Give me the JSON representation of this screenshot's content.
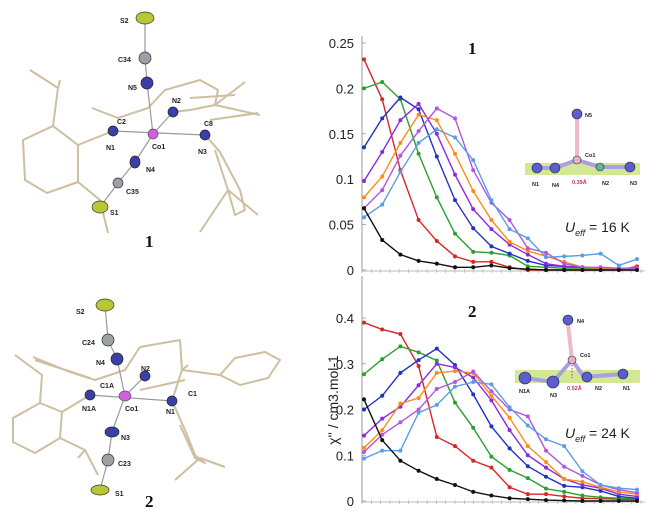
{
  "molecules": [
    {
      "id": "1",
      "atoms": [
        "S2",
        "C34",
        "N5",
        "N2",
        "C2",
        "N1",
        "Co1",
        "C8",
        "N3",
        "N4",
        "C35",
        "S1"
      ]
    },
    {
      "id": "2",
      "atoms": [
        "S2",
        "C24",
        "N4",
        "C1A",
        "N2",
        "N1A",
        "Co1",
        "N1",
        "C1",
        "N3",
        "C23",
        "S1"
      ]
    }
  ],
  "insets": [
    {
      "atoms": [
        "N5",
        "Co1",
        "N1",
        "N4",
        "N2",
        "N3"
      ],
      "distance": "0.39Å"
    },
    {
      "atoms": [
        "N4",
        "Co1",
        "N1A",
        "N3",
        "N2",
        "N1"
      ],
      "distance": "0.52Å"
    }
  ],
  "colors": {
    "red": "#d62728",
    "green": "#2ca02c",
    "darkblue": "#2233bb",
    "purple": "#8a2be2",
    "orange": "#ff8c1a",
    "violet": "#b455e0",
    "lightblue": "#5b9ee8",
    "black": "#111111",
    "nitrogen": "#3b3fa8",
    "sulfur": "#b8c832",
    "carbon": "#9aa0a6",
    "cobalt": "#d060e0"
  },
  "chart_data": [
    {
      "type": "line",
      "title": "1",
      "xlabel": "",
      "ylabel": "χ'' / cm3.mol-1",
      "ylim": [
        0,
        0.25
      ],
      "yticks": [
        "0",
        "0.05",
        "0.1",
        "0.15",
        "0.2",
        "0.25"
      ],
      "ytick_values": [
        0,
        0.05,
        0.1,
        0.15,
        0.2,
        0.25
      ],
      "annotation": {
        "symbol": "U",
        "sub": "eff",
        "text": " = 16 K"
      },
      "x": [
        0,
        1,
        2,
        3,
        4,
        5,
        6,
        7,
        8,
        9,
        10,
        11,
        12,
        13,
        14,
        15
      ],
      "series": [
        {
          "name": "red",
          "color": "#d62728",
          "values": [
            0.232,
            0.188,
            0.11,
            0.055,
            0.032,
            0.015,
            0.009,
            0.009,
            0.003,
            0,
            0,
            0,
            0,
            0,
            0,
            0.004
          ]
        },
        {
          "name": "green",
          "color": "#2ca02c",
          "values": [
            0.2,
            0.207,
            0.188,
            0.128,
            0.08,
            0.04,
            0.02,
            0.019,
            0.016,
            0.004,
            0.003,
            0.002,
            0.002,
            0.001,
            0.002,
            0.001
          ]
        },
        {
          "name": "darkblue",
          "color": "#2233bb",
          "values": [
            0.135,
            0.167,
            0.19,
            0.177,
            0.125,
            0.077,
            0.046,
            0.026,
            0.018,
            0.01,
            0.005,
            0.004,
            0.003,
            0.002,
            0.002,
            0.001
          ]
        },
        {
          "name": "purple",
          "color": "#8a2be2",
          "values": [
            0.098,
            0.13,
            0.165,
            0.183,
            0.15,
            0.105,
            0.067,
            0.045,
            0.028,
            0.017,
            0.007,
            0.004,
            0.003,
            0.002,
            0.002,
            0.001
          ]
        },
        {
          "name": "orange",
          "color": "#ff8c1a",
          "values": [
            0.08,
            0.103,
            0.14,
            0.171,
            0.165,
            0.128,
            0.087,
            0.055,
            0.031,
            0.021,
            0.015,
            0.009,
            0.003,
            0.002,
            0.002,
            0.001
          ]
        },
        {
          "name": "violet",
          "color": "#b455e0",
          "values": [
            0.068,
            0.088,
            0.126,
            0.153,
            0.178,
            0.167,
            0.11,
            0.074,
            0.055,
            0.024,
            0.019,
            0.007,
            0.003,
            0.003,
            0.002,
            0.002
          ]
        },
        {
          "name": "lightblue",
          "color": "#5b9ee8",
          "values": [
            0.058,
            0.072,
            0.108,
            0.14,
            0.155,
            0.146,
            0.121,
            0.077,
            0.045,
            0.035,
            0.014,
            0.015,
            0.016,
            0.018,
            0.005,
            0.012
          ]
        },
        {
          "name": "black",
          "color": "#111111",
          "values": [
            0.068,
            0.033,
            0.017,
            0.01,
            0.007,
            0.003,
            0.003,
            0.005,
            0.002,
            0.001,
            0,
            0,
            0,
            0,
            0,
            0
          ]
        }
      ]
    },
    {
      "type": "line",
      "title": "2",
      "xlabel": "",
      "ylabel": "χ'' / cm3.mol-1",
      "ylim": [
        0,
        0.45
      ],
      "yticks": [
        "0",
        "0.1",
        "0.2",
        "0.3",
        "0.4"
      ],
      "ytick_values": [
        0,
        0.1,
        0.2,
        0.3,
        0.4
      ],
      "annotation": {
        "symbol": "U",
        "sub": "eff",
        "text": " = 24 K"
      },
      "x": [
        0,
        1,
        2,
        3,
        4,
        5,
        6,
        7,
        8,
        9,
        10,
        11,
        12,
        13,
        14,
        15
      ],
      "series": [
        {
          "name": "red",
          "color": "#d62728",
          "values": [
            0.39,
            0.375,
            0.365,
            0.295,
            0.14,
            0.12,
            0.088,
            0.073,
            0.03,
            0.015,
            0.015,
            0.01,
            0.006,
            0.005,
            0.004,
            0.003
          ]
        },
        {
          "name": "green",
          "color": "#2ca02c",
          "values": [
            0.277,
            0.31,
            0.338,
            0.325,
            0.307,
            0.215,
            0.16,
            0.097,
            0.068,
            0.05,
            0.027,
            0.02,
            0.012,
            0.008,
            0.006,
            0.004
          ]
        },
        {
          "name": "darkblue",
          "color": "#2233bb",
          "values": [
            0.2,
            0.23,
            0.28,
            0.308,
            0.333,
            0.297,
            0.233,
            0.163,
            0.115,
            0.076,
            0.053,
            0.033,
            0.03,
            0.022,
            0.01,
            0.006
          ]
        },
        {
          "name": "purple",
          "color": "#8a2be2",
          "values": [
            0.143,
            0.18,
            0.206,
            0.253,
            0.3,
            0.292,
            0.27,
            0.22,
            0.155,
            0.1,
            0.073,
            0.048,
            0.035,
            0.028,
            0.015,
            0.01
          ]
        },
        {
          "name": "orange",
          "color": "#ff8c1a",
          "values": [
            0.116,
            0.155,
            0.213,
            0.225,
            0.28,
            0.284,
            0.28,
            0.23,
            0.182,
            0.12,
            0.085,
            0.048,
            0.042,
            0.03,
            0.02,
            0.015
          ]
        },
        {
          "name": "violet",
          "color": "#b455e0",
          "values": [
            0.107,
            0.145,
            0.172,
            0.2,
            0.245,
            0.26,
            0.283,
            0.24,
            0.2,
            0.185,
            0.11,
            0.075,
            0.055,
            0.035,
            0.025,
            0.018
          ]
        },
        {
          "name": "lightblue",
          "color": "#5b9ee8",
          "values": [
            0.093,
            0.11,
            0.11,
            0.193,
            0.21,
            0.25,
            0.26,
            0.255,
            0.205,
            0.165,
            0.135,
            0.12,
            0.065,
            0.035,
            0.028,
            0.025
          ]
        },
        {
          "name": "black",
          "color": "#111111",
          "values": [
            0.222,
            0.133,
            0.088,
            0.066,
            0.048,
            0.035,
            0.02,
            0.012,
            0.006,
            0.004,
            0.002,
            0.001,
            0,
            0,
            0,
            0
          ]
        }
      ]
    }
  ]
}
